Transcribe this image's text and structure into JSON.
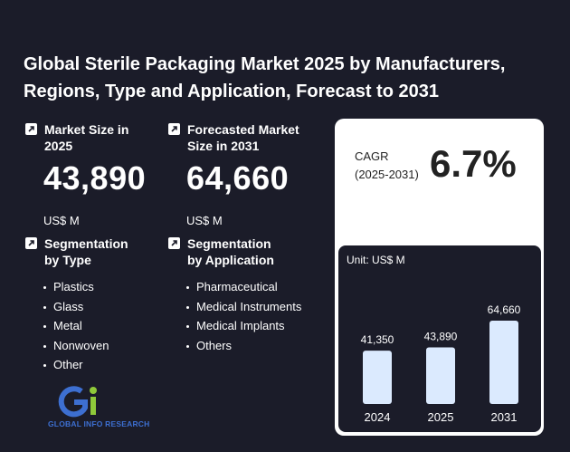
{
  "title": "Global Sterile Packaging Market 2025 by Manufacturers, Regions, Type and Application, Forecast to 2031",
  "market_size": {
    "label": "Market Size in 2025",
    "value": "43,890",
    "unit": "US$ M"
  },
  "forecast": {
    "label": "Forecasted Market Size in 2031",
    "value": "64,660",
    "unit": "US$ M"
  },
  "segment_type": {
    "label": "Segmentation by Type",
    "items": [
      "Plastics",
      "Glass",
      "Metal",
      "Nonwoven",
      "Other"
    ]
  },
  "segment_application": {
    "label": "Segmentation by Application",
    "items": [
      "Pharmaceutical",
      "Medical Instruments",
      "Medical Implants",
      "Others"
    ]
  },
  "cagr": {
    "label_line1": "CAGR",
    "label_line2": "(2025-2031)",
    "value": "6.7%"
  },
  "logo": {
    "text": "GLOBAL INFO RESEARCH",
    "mark": "Gi"
  },
  "chart_data": {
    "type": "bar",
    "unit_label": "Unit: US$ M",
    "categories": [
      "2024",
      "2025",
      "2031"
    ],
    "values": [
      41350,
      43890,
      64660
    ],
    "value_labels": [
      "41,350",
      "43,890",
      "64,660"
    ],
    "bar_color": "#dbeafe"
  }
}
